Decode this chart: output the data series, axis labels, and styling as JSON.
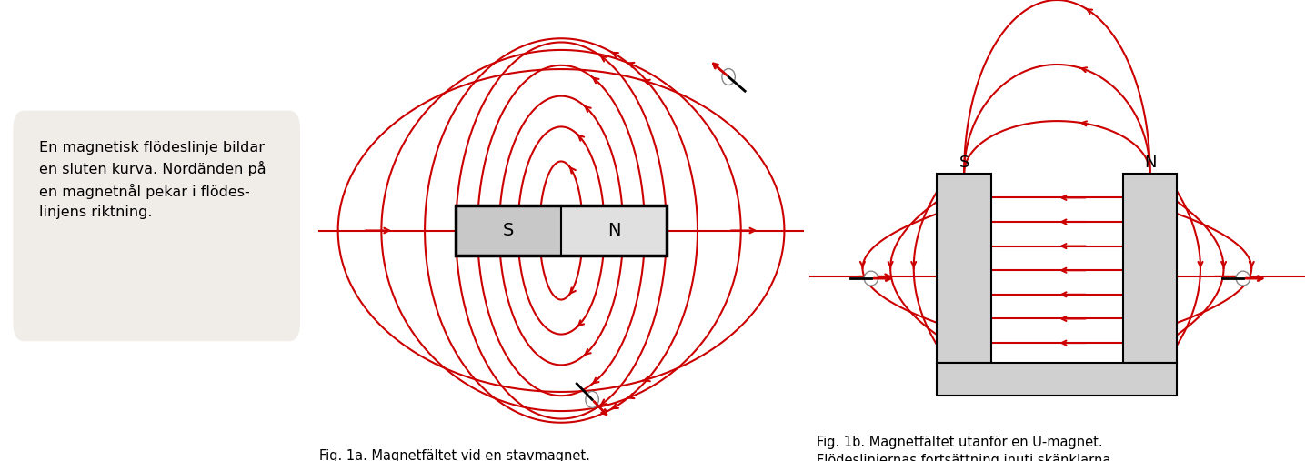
{
  "bg_color": "#ffffff",
  "text_box_color": "#f0ede8",
  "text_box_text": "En magnetisk flödeslinje bildar\nen sluten kurva. Nordänden på\nen magnetnål pekar i flödes-\nlinjens riktning.",
  "red_color": "#cc0000",
  "fig1a_caption": "Fig. 1a. Magnetfältet vid en stavmagnet.\nAlla flödeslinjer är slutna kurvor.",
  "fig1b_caption": "Fig. 1b. Magnetfältet utanför en U-magnet.\nFlödeslinjernas fortsättning inuti skänklarna\när inte utritade.",
  "font_size_caption": 10.5,
  "font_size_text": 11.5,
  "magnet_color_s": "#d0d0d0",
  "magnet_color_n": "#e8e8e8",
  "magnet_border": "#111111"
}
